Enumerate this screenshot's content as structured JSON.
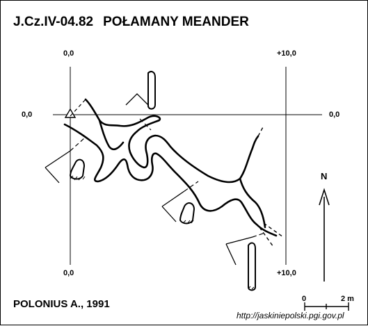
{
  "header": {
    "code": "J.Cz.IV-04.82",
    "name": "POŁAMANY MEANDER"
  },
  "grid": {
    "label_top_left": "0,0",
    "label_top_right": "+10,0",
    "label_left": "0,0",
    "label_right": "0,0",
    "label_bottom_left": "0,0",
    "label_bottom_right": "+10,0"
  },
  "north_label": "N",
  "scale": {
    "start_label": "0",
    "end_label": "2 m"
  },
  "author": "POLONIUS A., 1991",
  "url": "http://jaskiniepolski.pgi.gov.pl"
}
